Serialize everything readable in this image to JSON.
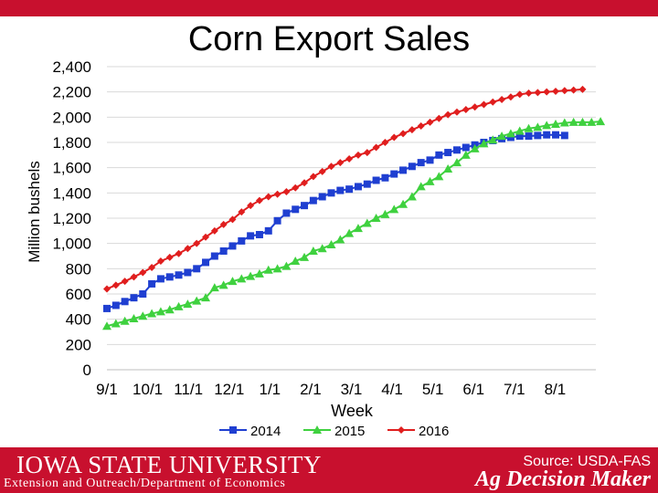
{
  "colors": {
    "brand_red": "#c8102e",
    "series_2014": "#1f3fd1",
    "series_2015": "#3fd13f",
    "series_2016": "#e01e1e"
  },
  "footer": {
    "university": "IOWA STATE UNIVERSITY",
    "department": "Extension and Outreach/Department of Economics",
    "source": "Source: USDA-FAS",
    "brand": "Ag Decision Maker"
  },
  "chart_data": {
    "type": "line",
    "title": "Corn Export Sales",
    "xlabel": "Week",
    "ylabel": "Million bushels",
    "ylim": [
      0,
      2400
    ],
    "yticks": [
      "0",
      "200",
      "400",
      "600",
      "800",
      "1,000",
      "1,200",
      "1,400",
      "1,600",
      "1,800",
      "2,000",
      "2,200",
      "2,400"
    ],
    "xticks": [
      "9/1",
      "10/1",
      "11/1",
      "12/1",
      "1/1",
      "2/1",
      "3/1",
      "4/1",
      "5/1",
      "6/1",
      "7/1",
      "8/1"
    ],
    "legend_position": "bottom",
    "grid": true,
    "series": [
      {
        "name": "2014",
        "marker": "square",
        "color": "#1f3fd1",
        "values": [
          485,
          510,
          540,
          570,
          600,
          680,
          720,
          735,
          750,
          770,
          800,
          850,
          900,
          940,
          980,
          1020,
          1060,
          1070,
          1100,
          1180,
          1240,
          1270,
          1300,
          1340,
          1370,
          1400,
          1420,
          1430,
          1450,
          1470,
          1500,
          1520,
          1550,
          1580,
          1610,
          1640,
          1660,
          1700,
          1720,
          1740,
          1760,
          1780,
          1800,
          1815,
          1830,
          1840,
          1850,
          1850,
          1855,
          1860,
          1860,
          1855
        ]
      },
      {
        "name": "2015",
        "marker": "triangle",
        "color": "#3fd13f",
        "values": [
          345,
          365,
          385,
          405,
          425,
          445,
          460,
          475,
          500,
          520,
          545,
          570,
          650,
          670,
          700,
          720,
          740,
          760,
          790,
          800,
          820,
          860,
          890,
          940,
          960,
          990,
          1030,
          1080,
          1120,
          1160,
          1200,
          1230,
          1270,
          1310,
          1370,
          1450,
          1490,
          1530,
          1590,
          1640,
          1700,
          1750,
          1790,
          1820,
          1850,
          1870,
          1890,
          1910,
          1920,
          1935,
          1945,
          1955,
          1960,
          1960,
          1960,
          1965
        ]
      },
      {
        "name": "2016",
        "marker": "diamond",
        "color": "#e01e1e",
        "values": [
          640,
          670,
          700,
          735,
          770,
          810,
          860,
          890,
          920,
          960,
          1000,
          1050,
          1100,
          1150,
          1190,
          1250,
          1300,
          1340,
          1370,
          1390,
          1410,
          1440,
          1480,
          1530,
          1570,
          1610,
          1640,
          1670,
          1700,
          1720,
          1760,
          1800,
          1840,
          1870,
          1900,
          1930,
          1960,
          1990,
          2020,
          2040,
          2060,
          2080,
          2100,
          2120,
          2140,
          2160,
          2180,
          2190,
          2195,
          2200,
          2205,
          2210,
          2215,
          2220
        ]
      }
    ]
  }
}
